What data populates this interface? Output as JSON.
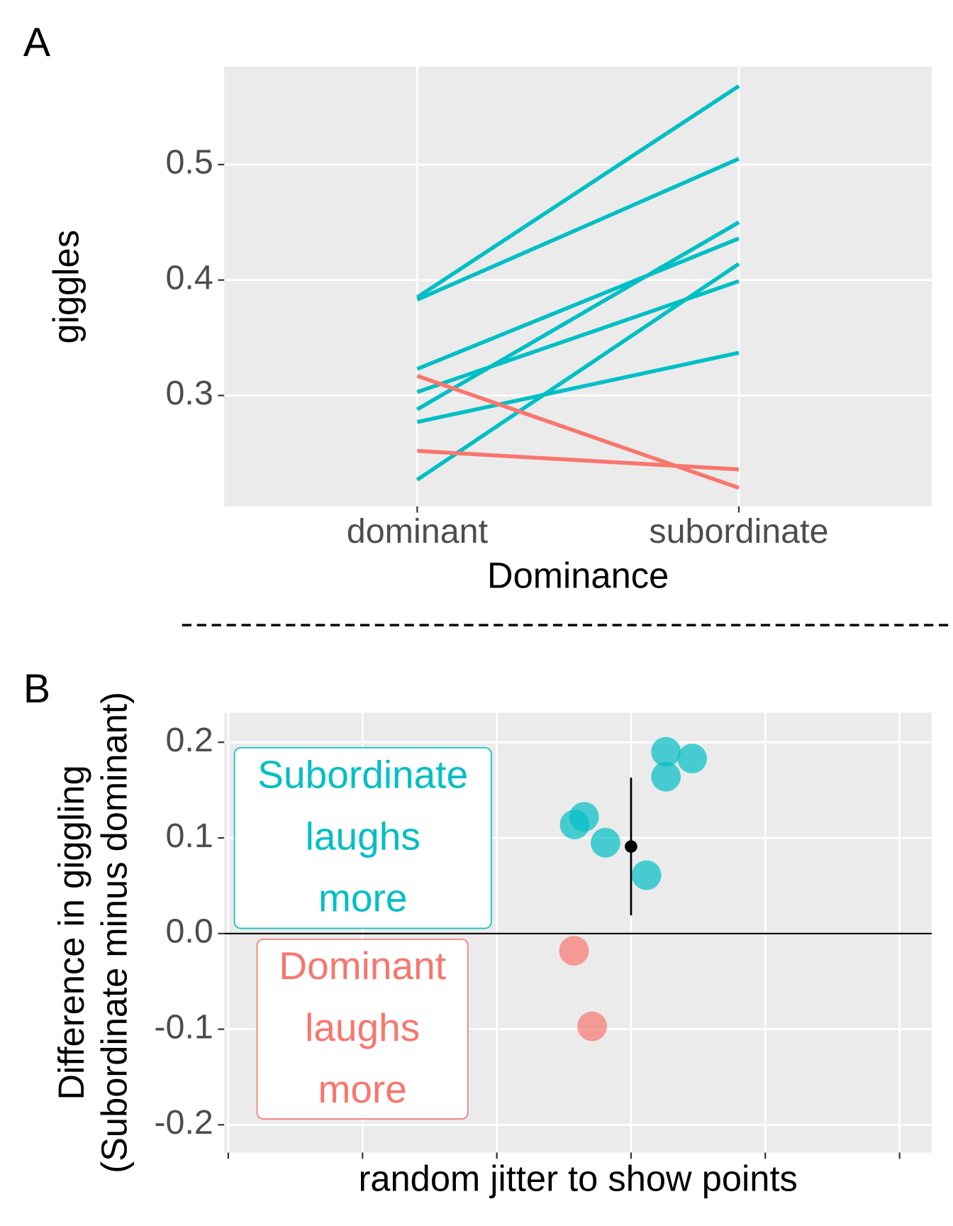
{
  "chart_data": [
    {
      "type": "line",
      "panel_label": "A",
      "x_label": "Dominance",
      "y_label": "giggles",
      "categories": [
        "dominant",
        "subordinate"
      ],
      "series": [
        {
          "color": "#00BFC4",
          "values": [
            0.385,
            0.568
          ]
        },
        {
          "color": "#00BFC4",
          "values": [
            0.383,
            0.505
          ]
        },
        {
          "color": "#00BFC4",
          "values": [
            0.323,
            0.436
          ]
        },
        {
          "color": "#00BFC4",
          "values": [
            0.303,
            0.399
          ]
        },
        {
          "color": "#00BFC4",
          "values": [
            0.288,
            0.45
          ]
        },
        {
          "color": "#00BFC4",
          "values": [
            0.277,
            0.337
          ]
        },
        {
          "color": "#00BFC4",
          "values": [
            0.227,
            0.414
          ]
        },
        {
          "color": "#F8766D",
          "values": [
            0.317,
            0.22
          ]
        },
        {
          "color": "#F8766D",
          "values": [
            0.252,
            0.236
          ]
        }
      ],
      "ylim": [
        0.204,
        0.585
      ],
      "yticks": [
        0.3,
        0.4,
        0.5
      ],
      "grid": true
    },
    {
      "type": "scatter",
      "panel_label": "B",
      "x_label": "random jitter to show points",
      "y_label": [
        "Difference in giggling",
        "(Subordinate minus dominant)"
      ],
      "series": [
        {
          "color": "#00BFC4",
          "x": [
            1.052,
            1.091,
            1.052,
            0.93,
            0.916,
            0.962,
            1.023
          ],
          "values": [
            0.19,
            0.183,
            0.164,
            0.122,
            0.114,
            0.095,
            0.061
          ]
        },
        {
          "color": "#F8766D",
          "x": [
            0.915,
            0.942
          ],
          "values": [
            -0.018,
            -0.097
          ]
        }
      ],
      "summary": {
        "x": 1,
        "value": 0.091,
        "error": 0.072,
        "color": "#000000"
      },
      "reference_line": 0,
      "annotations": [
        {
          "lines": [
            "Subordinate",
            "laughs",
            "more"
          ],
          "color": "#00BFC4"
        },
        {
          "lines": [
            "Dominant",
            "laughs",
            "more"
          ],
          "color": "#F8766D"
        }
      ],
      "xlim": [
        0.394,
        1.448
      ],
      "xticks": [
        0.4,
        0.6,
        0.8,
        1,
        1.2,
        1.4
      ],
      "ylim": [
        -0.229,
        0.231
      ],
      "yticks": [
        -0.2,
        -0.1,
        {
          "value": 0,
          "label": "0.0"
        },
        0.1,
        0.2
      ],
      "grid": true
    }
  ]
}
